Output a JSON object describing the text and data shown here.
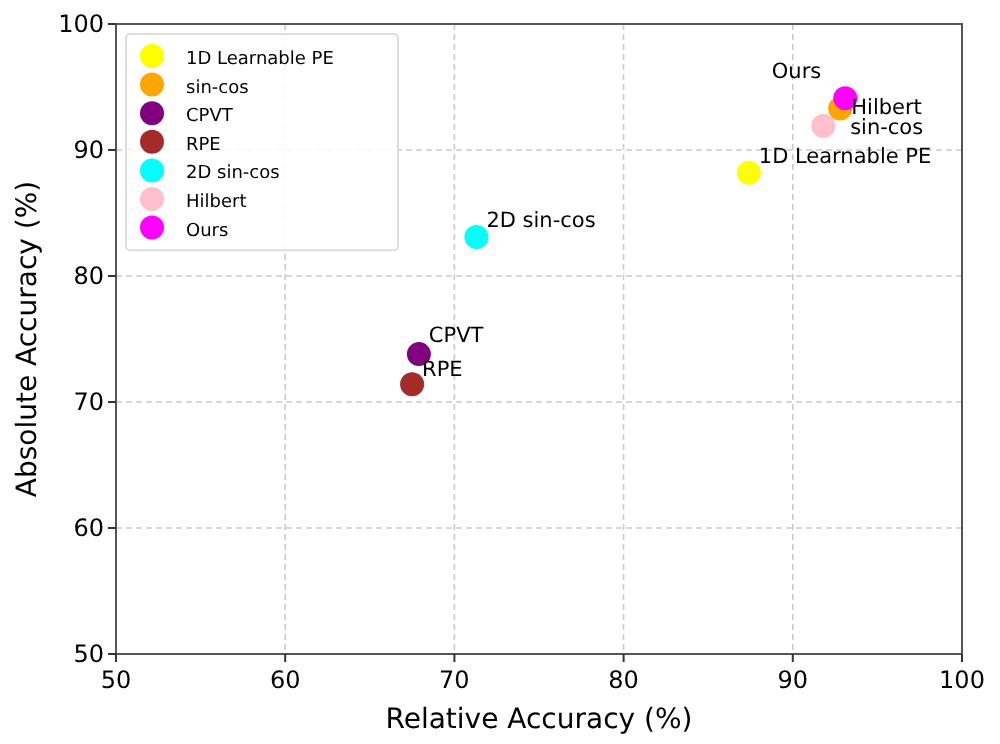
{
  "chart_data": {
    "type": "scatter",
    "xlabel": "Relative Accuracy (%)",
    "ylabel": "Absolute Accuracy (%)",
    "xlim": [
      50,
      100
    ],
    "ylim": [
      50,
      100
    ],
    "xticks": [
      50,
      60,
      70,
      80,
      90,
      100
    ],
    "yticks": [
      50,
      60,
      70,
      80,
      90,
      100
    ],
    "grid": true,
    "legend": "top left",
    "marker": "circle",
    "series": [
      {
        "name": "1D Learnable PE",
        "color": "#ffff00",
        "x": [
          87.4
        ],
        "values": [
          88.2
        ]
      },
      {
        "name": "sin-cos",
        "color": "#ffa500",
        "x": [
          92.8
        ],
        "values": [
          93.3
        ]
      },
      {
        "name": "CPVT",
        "color": "#800080",
        "x": [
          67.9
        ],
        "values": [
          73.8
        ]
      },
      {
        "name": "RPE",
        "color": "#a52a2a",
        "x": [
          67.5
        ],
        "values": [
          71.4
        ]
      },
      {
        "name": "2D sin-cos",
        "color": "#00ffff",
        "x": [
          71.3
        ],
        "values": [
          83.1
        ]
      },
      {
        "name": "Hilbert",
        "color": "#ffc0cb",
        "x": [
          91.8
        ],
        "values": [
          91.9
        ]
      },
      {
        "name": "Ours",
        "color": "#ff00ff",
        "x": [
          93.1
        ],
        "values": [
          94.1
        ]
      }
    ]
  }
}
